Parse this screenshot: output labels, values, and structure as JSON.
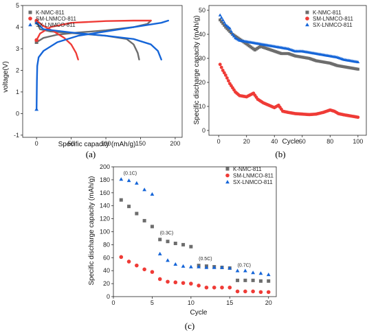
{
  "colors": {
    "K-NMC-811": "#6d6d6d",
    "SM-LNMCO-811": "#ef3b36",
    "SX-LNMCO-811": "#1565d8"
  },
  "chart_data": [
    {
      "panel": "(a)",
      "type": "line",
      "xlabel": "Specific capacity (mAh/g)",
      "ylabel": "voltage(V)",
      "xlim": [
        -20,
        210
      ],
      "ylim": [
        -1.1,
        5
      ],
      "xticks": [
        "0",
        "50",
        "100",
        "150",
        "200"
      ],
      "yticks": [
        "-1",
        "0",
        "1",
        "2",
        "3",
        "4",
        "5"
      ],
      "legend": [
        "K-NMC-811",
        "SM-LNMCO-811",
        "SX-LNMCO-811"
      ],
      "legend_position": "top-left",
      "series": [
        {
          "name": "K-NMC-811",
          "charge": [
            [
              0,
              3.3
            ],
            [
              10,
              3.5
            ],
            [
              30,
              3.65
            ],
            [
              60,
              3.75
            ],
            [
              100,
              3.85
            ],
            [
              140,
              4.0
            ],
            [
              160,
              4.15
            ],
            [
              165,
              4.3
            ]
          ],
          "discharge": [
            [
              0,
              4.25
            ],
            [
              5,
              3.9
            ],
            [
              20,
              3.8
            ],
            [
              60,
              3.7
            ],
            [
              100,
              3.6
            ],
            [
              130,
              3.45
            ],
            [
              140,
              3.2
            ],
            [
              146,
              2.8
            ],
            [
              148,
              2.5
            ]
          ]
        },
        {
          "name": "SM-LNMCO-811",
          "charge": [
            [
              0,
              3.4
            ],
            [
              5,
              3.7
            ],
            [
              20,
              4.0
            ],
            [
              50,
              4.2
            ],
            [
              100,
              4.28
            ],
            [
              140,
              4.3
            ],
            [
              165,
              4.3
            ]
          ],
          "discharge": [
            [
              0,
              4.3
            ],
            [
              10,
              4.05
            ],
            [
              25,
              3.8
            ],
            [
              40,
              3.5
            ],
            [
              50,
              3.2
            ],
            [
              57,
              2.8
            ],
            [
              60,
              2.5
            ]
          ]
        },
        {
          "name": "SX-LNMCO-811",
          "charge": [
            [
              0,
              0.2
            ],
            [
              0.5,
              1.5
            ],
            [
              1,
              2.2
            ],
            [
              3,
              2.6
            ],
            [
              10,
              2.9
            ],
            [
              30,
              3.3
            ],
            [
              60,
              3.6
            ],
            [
              100,
              3.8
            ],
            [
              150,
              4.05
            ],
            [
              180,
              4.2
            ],
            [
              190,
              4.3
            ]
          ],
          "discharge": [
            [
              0,
              4.2
            ],
            [
              10,
              3.9
            ],
            [
              50,
              3.75
            ],
            [
              100,
              3.6
            ],
            [
              140,
              3.45
            ],
            [
              165,
              3.2
            ],
            [
              175,
              2.9
            ],
            [
              180,
              2.5
            ]
          ]
        }
      ]
    },
    {
      "panel": "(b)",
      "type": "scatter",
      "xlabel": "Cycle",
      "ylabel": "Specific discharge capacity (mAh/g)",
      "xlim": [
        -7,
        106
      ],
      "ylim": [
        -2,
        52
      ],
      "xticks": [
        "0",
        "20",
        "40",
        "60",
        "80",
        "100"
      ],
      "yticks": [
        "0",
        "10",
        "20",
        "30",
        "40",
        "50"
      ],
      "legend": [
        "K-NMC-811",
        "SM-LNMCO-811",
        "SX-LNMCO-811"
      ],
      "legend_position": "top-right",
      "series": [
        {
          "name": "K-NMC-811",
          "x": [
            1,
            5,
            10,
            15,
            20,
            26,
            30,
            35,
            40,
            45,
            50,
            55,
            60,
            65,
            70,
            75,
            80,
            85,
            90,
            95,
            100
          ],
          "y": [
            46,
            43,
            40,
            38,
            36,
            33.5,
            35,
            34,
            33,
            32,
            32,
            31,
            30.5,
            30,
            29,
            28.5,
            28,
            27,
            26.5,
            26,
            25.5
          ]
        },
        {
          "name": "SM-LNMCO-811",
          "x": [
            1,
            3,
            5,
            8,
            12,
            15,
            20,
            25,
            28,
            32,
            36,
            40,
            43,
            46,
            50,
            55,
            60,
            65,
            70,
            75,
            80,
            83,
            86,
            90,
            95,
            100
          ],
          "y": [
            27.5,
            25,
            23,
            19.5,
            16,
            14.5,
            14,
            15.5,
            13,
            11.5,
            10.5,
            9.5,
            10.5,
            8,
            7.5,
            7,
            6.8,
            6.6,
            6.8,
            7.5,
            8.5,
            8,
            7,
            6.5,
            6,
            5.5
          ]
        },
        {
          "name": "SX-LNMCO-811",
          "x": [
            1,
            3,
            5,
            8,
            10,
            12,
            15,
            20,
            25,
            30,
            35,
            40,
            45,
            50,
            55,
            60,
            65,
            70,
            75,
            80,
            85,
            90,
            95,
            100
          ],
          "y": [
            48,
            46,
            44,
            42.5,
            40,
            38.5,
            37.5,
            37,
            36.5,
            36,
            35.5,
            35,
            34.5,
            34,
            33,
            33,
            32.5,
            32,
            31.5,
            31,
            30.5,
            29.5,
            29,
            28.5
          ]
        }
      ]
    },
    {
      "panel": "(c)",
      "type": "scatter",
      "xlabel": "Cycle",
      "ylabel": "Specific discharge capacity (mAh/g)",
      "xlim": [
        0,
        21
      ],
      "ylim": [
        0,
        200
      ],
      "xticks": [
        "0",
        "5",
        "10",
        "15",
        "20"
      ],
      "yticks": [
        "0",
        "20",
        "40",
        "60",
        "80",
        "100",
        "120",
        "140",
        "160",
        "180",
        "200"
      ],
      "legend": [
        "K-NMC-811",
        "SM-LNMCO-811",
        "SX-LNMCO-811"
      ],
      "legend_position": "top-right",
      "annotations": [
        {
          "text": "(0.1C)",
          "x": 1.3,
          "y": 188
        },
        {
          "text": "(0.3C)",
          "x": 6.0,
          "y": 96
        },
        {
          "text": "(0.5C)",
          "x": 11.0,
          "y": 56
        },
        {
          "text": "(0.7C)",
          "x": 16.0,
          "y": 46
        }
      ],
      "series": [
        {
          "name": "K-NMC-811",
          "x": [
            1,
            2,
            3,
            4,
            5,
            6,
            7,
            8,
            9,
            10,
            11,
            12,
            13,
            14,
            15,
            16,
            17,
            18,
            19,
            20
          ],
          "y": [
            149,
            139,
            128,
            117,
            108,
            88,
            85,
            82,
            80,
            77,
            48,
            47,
            46,
            45,
            44,
            25,
            25,
            25,
            24,
            24
          ]
        },
        {
          "name": "SM-LNMCO-811",
          "x": [
            1,
            2,
            3,
            4,
            5,
            6,
            7,
            8,
            9,
            10,
            11,
            12,
            13,
            14,
            15,
            16,
            17,
            18,
            19,
            20
          ],
          "y": [
            61,
            54,
            48,
            42,
            38,
            27,
            23,
            22,
            21,
            20,
            17,
            14,
            14,
            14,
            14,
            8,
            8,
            8,
            7,
            7
          ]
        },
        {
          "name": "SX-LNMCO-811",
          "x": [
            1,
            2,
            3,
            4,
            5,
            6,
            7,
            8,
            9,
            10,
            11,
            12,
            13,
            14,
            15,
            16,
            17,
            18,
            19,
            20
          ],
          "y": [
            181,
            179,
            175,
            165,
            158,
            66,
            56,
            50,
            47,
            46,
            46,
            45,
            45,
            45,
            44,
            40,
            40,
            37,
            36,
            34
          ]
        }
      ]
    }
  ]
}
